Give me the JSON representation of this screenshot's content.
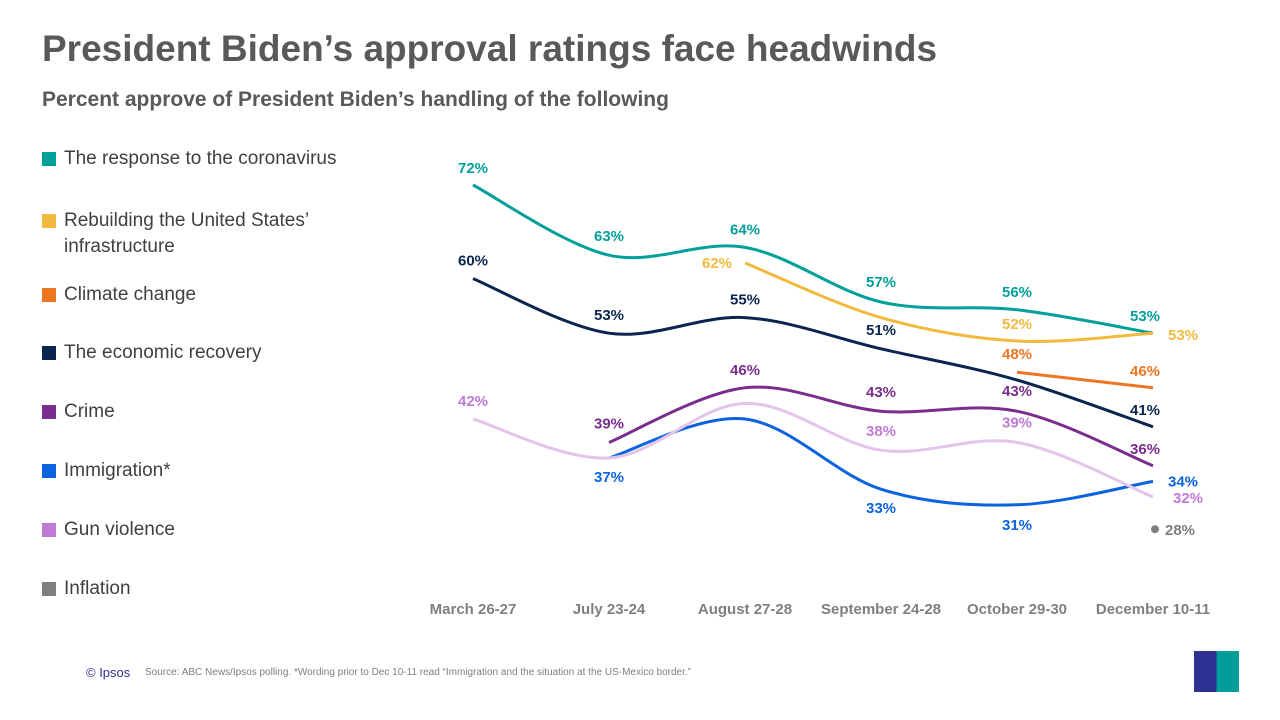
{
  "title": "President Biden’s approval ratings face headwinds",
  "subtitle": "Percent approve of President Biden’s handling of the following",
  "footer": {
    "copyright": "© Ipsos",
    "source": "Source: ABC News/Ipsos polling. *Wording prior to Dec 10-11 read “Immigration  and the situation at the US-Mexico border.”",
    "logo": "Ipsos"
  },
  "chart_data": {
    "type": "line",
    "categories": [
      "March 26-27",
      "July 23-24",
      "August 27-28",
      "September 24-28",
      "October 29-30",
      "December 10-11"
    ],
    "ylim": [
      25,
      75
    ],
    "legend_placement": "left",
    "series": [
      {
        "name": "The response to the coronavirus",
        "color": "#00a09a",
        "values": [
          72,
          63,
          64,
          57,
          56,
          53
        ]
      },
      {
        "name": "Rebuilding the United States’ infrastructure",
        "color": "#f1b93e",
        "values": [
          null,
          null,
          62,
          null,
          52,
          53
        ]
      },
      {
        "name": "Climate change",
        "color": "#ed7623",
        "values": [
          null,
          null,
          null,
          null,
          48,
          46
        ]
      },
      {
        "name": "The economic recovery",
        "color": "#0b2550",
        "values": [
          60,
          53,
          55,
          51,
          null,
          41
        ]
      },
      {
        "name": "Crime",
        "color": "#7b2d8e",
        "values": [
          null,
          39,
          46,
          43,
          43,
          36
        ]
      },
      {
        "name": "Immigration*",
        "color": "#0b63e0",
        "values": [
          null,
          37,
          null,
          33,
          31,
          34
        ]
      },
      {
        "name": "Gun violence",
        "color": "#c07ad6",
        "line_color": "#e3c4ea",
        "values": [
          42,
          null,
          null,
          38,
          39,
          32
        ]
      },
      {
        "name": "Inflation",
        "color": "#7f7f7f",
        "values": [
          null,
          null,
          null,
          null,
          null,
          28
        ]
      }
    ],
    "curve_points": {
      "The response to the coronavirus": [
        72,
        63,
        64,
        57,
        56,
        53
      ],
      "Rebuilding the United States’ infrastructure": [
        null,
        null,
        62,
        55,
        52,
        53
      ],
      "Climate change": [
        null,
        null,
        null,
        null,
        48,
        46
      ],
      "The economic recovery": [
        60,
        53,
        55,
        51,
        47,
        41
      ],
      "Crime": [
        null,
        39,
        46,
        43,
        43,
        36
      ],
      "Immigration*": [
        null,
        37,
        42,
        33,
        31,
        34
      ],
      "Gun violence": [
        42,
        37,
        44,
        38,
        39,
        32
      ],
      "Inflation": [
        null,
        null,
        null,
        null,
        null,
        28
      ]
    }
  }
}
